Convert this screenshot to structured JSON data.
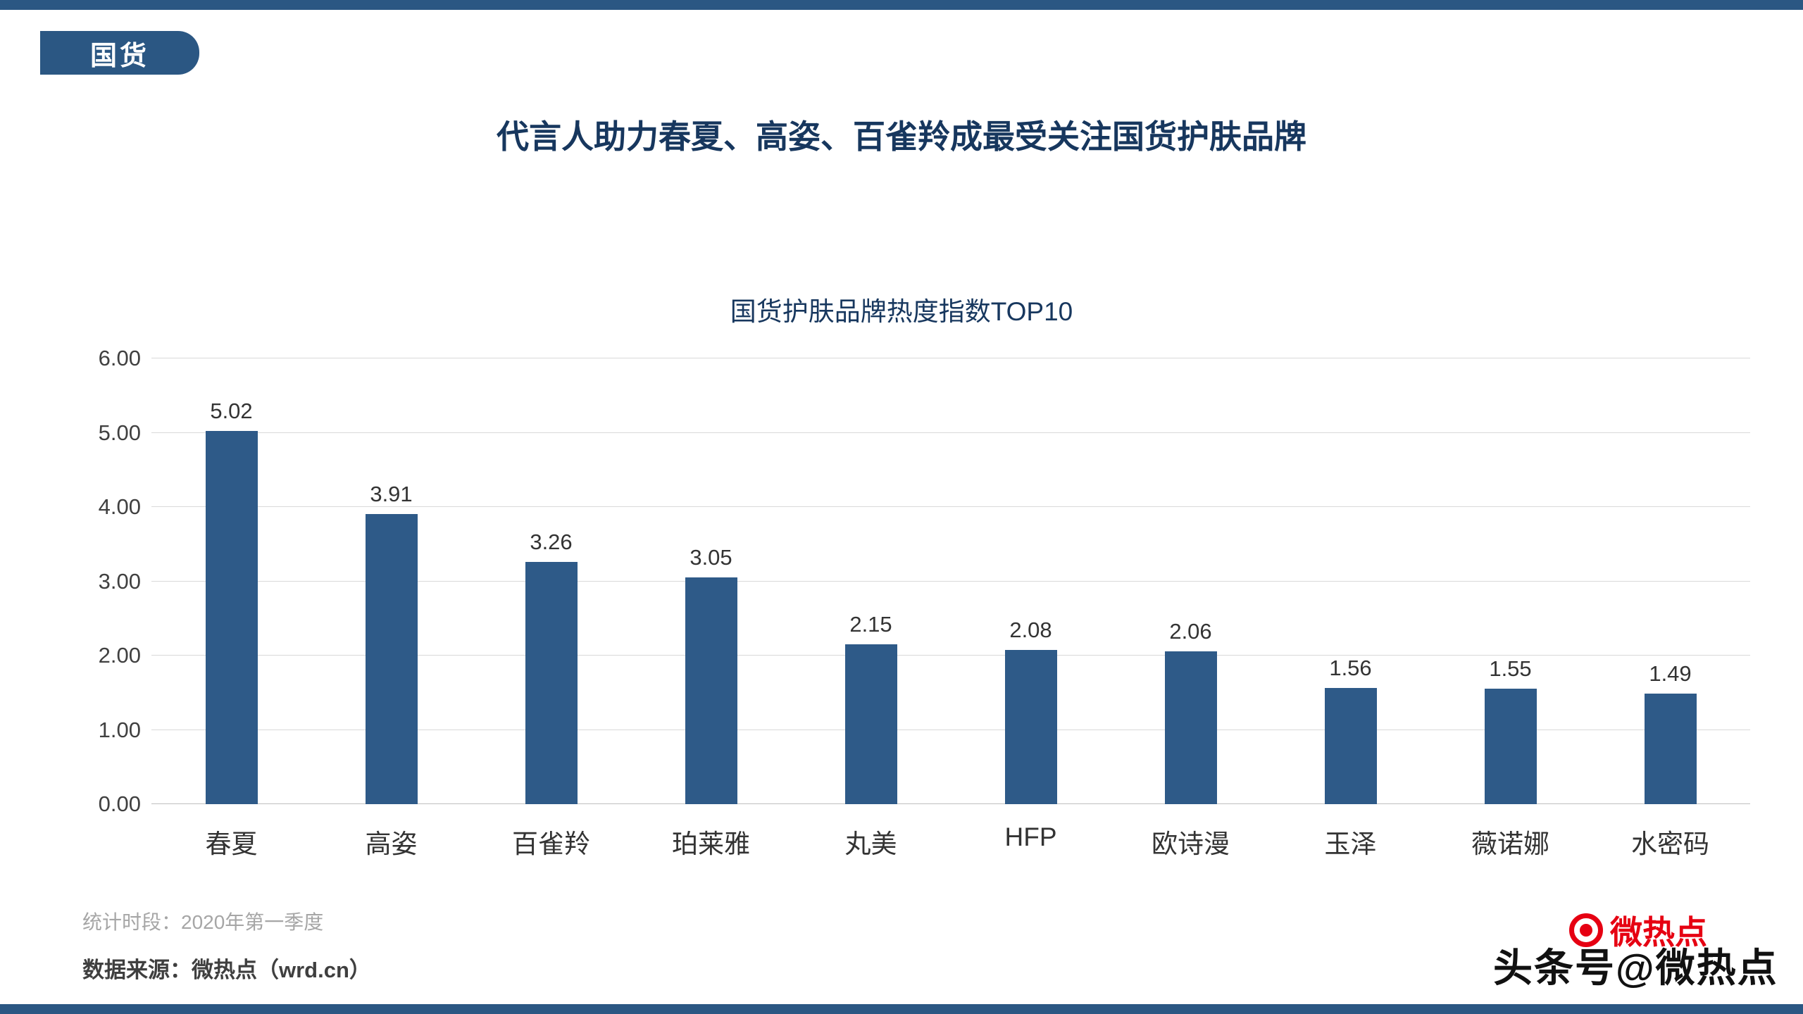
{
  "page": {
    "badge": "国货",
    "title": "代言人助力春夏、高姿、百雀羚成最受关注国货护肤品牌",
    "footer_period": "统计时段：2020年第一季度",
    "footer_source": "数据来源：微热点（wrd.cn）",
    "watermark": {
      "overlay_text": "头条号@微热点",
      "logo_text": "微热点"
    }
  },
  "colors": {
    "accent": "#2B5783",
    "bar": "#2E5A88",
    "title": "#17375E",
    "grid": "#D9D9D9",
    "axis_text": "#404040",
    "muted": "#A6A6A6",
    "logo_red": "#E60012"
  },
  "chart_data": {
    "type": "bar",
    "title": "国货护肤品牌热度指数TOP10",
    "categories": [
      "春夏",
      "高姿",
      "百雀羚",
      "珀莱雅",
      "丸美",
      "HFP",
      "欧诗漫",
      "玉泽",
      "薇诺娜",
      "水密码"
    ],
    "values": [
      5.02,
      3.91,
      3.26,
      3.05,
      2.15,
      2.08,
      2.06,
      1.56,
      1.55,
      1.49
    ],
    "value_labels": [
      "5.02",
      "3.91",
      "3.26",
      "3.05",
      "2.15",
      "2.08",
      "2.06",
      "1.56",
      "1.55",
      "1.49"
    ],
    "xlabel": "",
    "ylabel": "",
    "ylim": [
      0,
      6
    ],
    "ytick_step": 1,
    "ytick_labels": [
      "0.00",
      "1.00",
      "2.00",
      "3.00",
      "4.00",
      "5.00",
      "6.00"
    ],
    "grid": "horizontal",
    "legend": "none"
  }
}
